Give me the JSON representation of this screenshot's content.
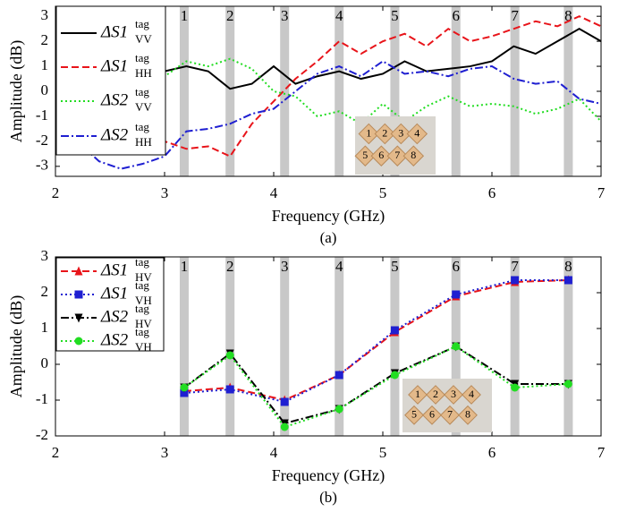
{
  "chart_data": [
    {
      "type": "line",
      "xlabel": "Frequency (GHz)",
      "ylabel": "Amplitude (dB)",
      "caption": "(a)",
      "xlim": [
        2,
        7
      ],
      "xticks": [
        2,
        3,
        4,
        5,
        6,
        7
      ],
      "ylim": [
        -3.4,
        3.4
      ],
      "yticks": [
        -3,
        -2,
        -1,
        0,
        1,
        2,
        3
      ],
      "legend": "upper left",
      "bands": {
        "x": [
          3.18,
          3.6,
          4.1,
          4.6,
          5.11,
          5.67,
          6.21,
          6.7
        ],
        "labels": [
          "1",
          "2",
          "3",
          "4",
          "5",
          "6",
          "7",
          "8"
        ]
      },
      "inset_labels": [
        "1",
        "2",
        "3",
        "4",
        "5",
        "6",
        "7",
        "8"
      ],
      "x": [
        2.0,
        2.2,
        2.4,
        2.6,
        2.8,
        3.0,
        3.2,
        3.4,
        3.6,
        3.8,
        4.0,
        4.2,
        4.4,
        4.6,
        4.8,
        5.0,
        5.2,
        5.4,
        5.6,
        5.8,
        6.0,
        6.2,
        6.4,
        6.6,
        6.8,
        7.0
      ],
      "series": [
        {
          "name": "ΔS1",
          "subscript": "VV",
          "superscript": "tag",
          "color": "#000000",
          "dash": "solid",
          "values": [
            0.4,
            0.5,
            0.5,
            0.6,
            0.6,
            0.8,
            1.0,
            0.8,
            0.1,
            0.3,
            1.0,
            0.3,
            0.6,
            0.8,
            0.5,
            0.7,
            1.2,
            0.8,
            0.9,
            1.0,
            1.2,
            1.8,
            1.5,
            2.0,
            2.5,
            2.0
          ]
        },
        {
          "name": "ΔS1",
          "subscript": "HH",
          "superscript": "tag",
          "color": "#e8141a",
          "dash": "dashed",
          "values": [
            0.6,
            0.0,
            0.3,
            0.5,
            0.7,
            -2.0,
            -2.3,
            -2.2,
            -2.6,
            -1.3,
            -0.4,
            0.5,
            1.2,
            2.0,
            1.5,
            2.0,
            2.3,
            1.8,
            2.5,
            2.0,
            2.2,
            2.5,
            2.8,
            2.6,
            3.0,
            2.6
          ]
        },
        {
          "name": "ΔS2",
          "subscript": "VV",
          "superscript": "tag",
          "color": "#22dd22",
          "dash": "dotted",
          "values": [
            -2.0,
            -1.8,
            0.2,
            0.5,
            0.7,
            0.6,
            1.2,
            1.0,
            1.3,
            0.9,
            0.0,
            -0.2,
            -1.0,
            -0.8,
            -1.3,
            -0.5,
            -1.2,
            -0.6,
            -0.2,
            -0.6,
            -0.5,
            -0.6,
            -0.9,
            -0.7,
            -0.3,
            -1.2
          ]
        },
        {
          "name": "ΔS2",
          "subscript": "HH",
          "superscript": "tag",
          "color": "#1f1fd1",
          "dash": "dashdot",
          "values": [
            -1.8,
            -2.0,
            -2.8,
            -3.1,
            -2.9,
            -2.6,
            -1.6,
            -1.5,
            -1.3,
            -0.9,
            -0.7,
            0.0,
            0.7,
            1.0,
            0.6,
            1.2,
            0.7,
            0.8,
            0.6,
            0.9,
            1.0,
            0.5,
            0.3,
            0.4,
            -0.3,
            -0.5
          ]
        }
      ]
    },
    {
      "type": "line",
      "xlabel": "Frequency (GHz)",
      "ylabel": "Amplitude (dB)",
      "caption": "(b)",
      "xlim": [
        2,
        7
      ],
      "xticks": [
        2,
        3,
        4,
        5,
        6,
        7
      ],
      "ylim": [
        -2,
        3
      ],
      "yticks": [
        -2,
        -1,
        0,
        1,
        2,
        3
      ],
      "legend": "upper left",
      "bands": {
        "x": [
          3.18,
          3.6,
          4.1,
          4.6,
          5.11,
          5.67,
          6.21,
          6.7
        ],
        "labels": [
          "1",
          "2",
          "3",
          "4",
          "5",
          "6",
          "7",
          "8"
        ]
      },
      "inset_labels": [
        "1",
        "2",
        "3",
        "4",
        "5",
        "6",
        "7",
        "8"
      ],
      "x": [
        3.18,
        3.6,
        4.1,
        4.6,
        5.11,
        5.67,
        6.21,
        6.7
      ],
      "series": [
        {
          "name": "ΔS1",
          "subscript": "HV",
          "superscript": "tag",
          "color": "#e8141a",
          "dash": "dashed",
          "marker": "triangle",
          "values": [
            -0.75,
            -0.65,
            -1.0,
            -0.3,
            0.9,
            1.9,
            2.3,
            2.35
          ]
        },
        {
          "name": "ΔS1",
          "subscript": "VH",
          "superscript": "tag",
          "color": "#1f1fd1",
          "dash": "dotted",
          "marker": "square",
          "values": [
            -0.8,
            -0.7,
            -1.05,
            -0.3,
            0.95,
            1.95,
            2.35,
            2.35
          ]
        },
        {
          "name": "ΔS2",
          "subscript": "HV",
          "superscript": "tag",
          "color": "#000000",
          "dash": "dashdot",
          "marker": "triangle-down",
          "values": [
            -0.65,
            0.3,
            -1.65,
            -1.25,
            -0.25,
            0.5,
            -0.55,
            -0.55
          ]
        },
        {
          "name": "ΔS2",
          "subscript": "VH",
          "superscript": "tag",
          "color": "#22dd22",
          "dash": "dotted",
          "marker": "circle",
          "values": [
            -0.65,
            0.25,
            -1.75,
            -1.25,
            -0.3,
            0.5,
            -0.65,
            -0.55
          ]
        }
      ]
    }
  ]
}
